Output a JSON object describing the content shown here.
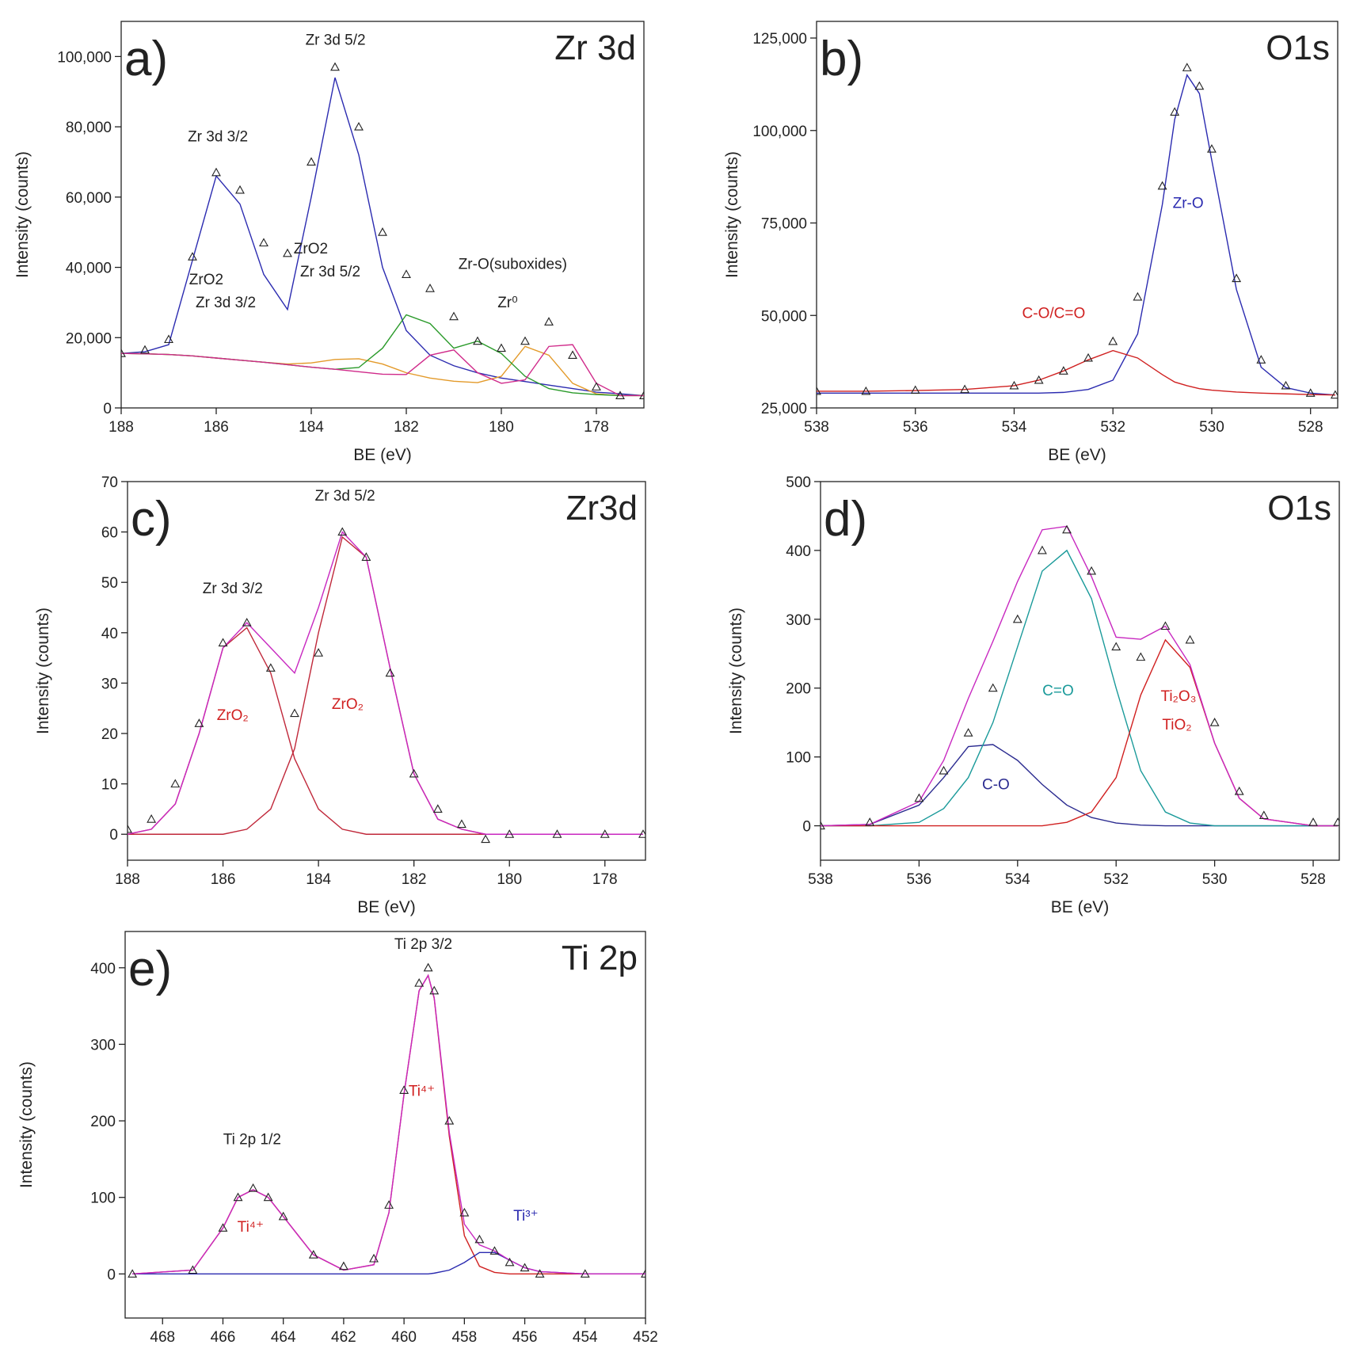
{
  "chart_data": [
    {
      "type": "line",
      "label": "a)",
      "title": "Zr 3d",
      "xlabel": "BE (eV)",
      "ylabel": "Intensity (counts)",
      "x": [
        188,
        187.5,
        187,
        186.5,
        186,
        185.5,
        185,
        184.5,
        184,
        183.5,
        183,
        182.5,
        182,
        181.5,
        181,
        180.5,
        180,
        179.5,
        179,
        178.5,
        178,
        177.5,
        177
      ],
      "xlim": [
        188,
        177
      ],
      "xticks": [
        188,
        186,
        184,
        182,
        180,
        178
      ],
      "ylim": [
        0,
        110000
      ],
      "yticks": [
        0,
        {
          "value": 20000,
          "label": "20,000"
        },
        {
          "value": 40000,
          "label": "40,000"
        },
        {
          "value": 60000,
          "label": "60,000"
        },
        {
          "value": 80000,
          "label": "80,000"
        },
        {
          "value": 100000,
          "label": "100,000"
        }
      ],
      "series": [
        {
          "color": "#2b2bb0",
          "values": [
            15500,
            16000,
            18000,
            42000,
            66000,
            58000,
            38000,
            28000,
            60000,
            94000,
            72000,
            40000,
            22000,
            15000,
            12000,
            10000,
            8500,
            7500,
            6500,
            5500,
            4500,
            4000,
            3500
          ]
        },
        {
          "color": "#e39a2a",
          "values": [
            15500,
            15400,
            15200,
            14800,
            14200,
            13600,
            13000,
            12500,
            12800,
            13800,
            14000,
            12500,
            10000,
            8500,
            7600,
            7200,
            9000,
            17500,
            15000,
            7000,
            4000,
            3500,
            3500
          ]
        },
        {
          "color": "#2a9a2a",
          "values": [
            15500,
            15400,
            15200,
            14800,
            14200,
            13600,
            13000,
            12300,
            11600,
            11000,
            11500,
            17000,
            26500,
            24000,
            17000,
            19000,
            15500,
            9000,
            5500,
            4300,
            3800,
            3500,
            3500
          ]
        },
        {
          "color": "#d02a8a",
          "values": [
            15500,
            15400,
            15200,
            14800,
            14200,
            13600,
            13000,
            12300,
            11600,
            11000,
            10300,
            9600,
            9500,
            15000,
            16500,
            10000,
            7000,
            8000,
            17500,
            18000,
            7000,
            3500,
            3500
          ]
        },
        {
          "color": "#222222",
          "marker": "triangle",
          "values": [
            15500,
            16500,
            19500,
            43000,
            67000,
            62000,
            47000,
            44000,
            70000,
            97000,
            80000,
            50000,
            38000,
            34000,
            26000,
            19000,
            17000,
            19000,
            24500,
            15000,
            6000,
            3500,
            3500
          ]
        }
      ],
      "annotations": [
        {
          "text": "Zr 3d 5/2",
          "color": "#222222"
        },
        {
          "text": "Zr 3d 3/2",
          "color": "#222222"
        },
        {
          "text": "ZrO2",
          "color": "#222222"
        },
        {
          "text": "Zr 3d 3/2",
          "color": "#222222"
        },
        {
          "text": "ZrO2",
          "color": "#222222"
        },
        {
          "text": "Zr 3d 5/2",
          "color": "#222222"
        },
        {
          "text": "Zr-O(suboxides)",
          "color": "#222222"
        },
        {
          "text": "Zr⁰",
          "color": "#222222"
        }
      ]
    },
    {
      "type": "line",
      "label": "b)",
      "title": "O1s",
      "xlabel": "BE (eV)",
      "ylabel": "Intensity (counts)",
      "x": [
        538,
        537,
        536,
        535,
        534,
        533.5,
        533,
        532.5,
        532,
        531.5,
        531,
        530.75,
        530.5,
        530.25,
        530,
        529.5,
        529,
        528.5,
        528,
        527.5
      ],
      "xlim": [
        538,
        527.45
      ],
      "xticks": [
        538,
        536,
        534,
        532,
        530,
        528
      ],
      "ylim": [
        25000,
        129500
      ],
      "yticks": [
        {
          "value": 25000,
          "label": "25,000"
        },
        {
          "value": 50000,
          "label": "50,000"
        },
        {
          "value": 75000,
          "label": "75,000"
        },
        {
          "value": 100000,
          "label": "100,000"
        },
        {
          "value": 125000,
          "label": "125,000"
        }
      ],
      "series": [
        {
          "color": "#2b2bb0",
          "values": [
            29000,
            29000,
            29000,
            29000,
            29000,
            29000,
            29200,
            30000,
            32500,
            45000,
            80000,
            103000,
            115000,
            110000,
            92000,
            57000,
            36000,
            30500,
            29000,
            28500
          ]
        },
        {
          "color": "#d02020",
          "values": [
            29500,
            29500,
            29700,
            30000,
            31000,
            32500,
            35000,
            38000,
            40500,
            38500,
            34000,
            32000,
            31000,
            30200,
            29800,
            29300,
            29000,
            28800,
            28600,
            28500
          ]
        },
        {
          "color": "#222222",
          "marker": "triangle",
          "values": [
            29500,
            29500,
            29800,
            30000,
            31000,
            32500,
            35000,
            38500,
            43000,
            55000,
            85000,
            105000,
            117000,
            112000,
            95000,
            60000,
            38000,
            31000,
            29000,
            28500
          ]
        }
      ],
      "annotations": [
        {
          "text": "Zr-O",
          "color": "#2b2bb0"
        },
        {
          "text": "C-O/C=O",
          "color": "#d02020"
        }
      ]
    },
    {
      "type": "line",
      "label": "c)",
      "title": "Zr3d",
      "xlabel": "BE (eV)",
      "ylabel": "Intensity (counts)",
      "x": [
        188,
        187.5,
        187,
        186.5,
        186,
        185.5,
        185,
        184.5,
        184,
        183.5,
        183,
        182.5,
        182,
        181.5,
        181,
        180.5,
        180,
        179,
        178,
        177.2
      ],
      "xlim": [
        188,
        177.15
      ],
      "xticks": [
        188,
        186,
        184,
        182,
        180,
        178
      ],
      "ylim": [
        -5.15,
        70
      ],
      "yticks": [
        0,
        10,
        20,
        30,
        40,
        50,
        60,
        70
      ],
      "series": [
        {
          "color": "#c0283a",
          "values": [
            0,
            1,
            6,
            20,
            37,
            41,
            32,
            15,
            5,
            1,
            0,
            0,
            0,
            0,
            0,
            0,
            0,
            0,
            0,
            0
          ]
        },
        {
          "color": "#c0283a",
          "values": [
            0,
            0,
            0,
            0,
            0,
            1,
            5,
            17,
            40,
            59,
            55,
            33,
            12,
            3,
            1,
            0,
            0,
            0,
            0,
            0
          ]
        },
        {
          "color": "#c828c0",
          "values": [
            0,
            1,
            6,
            20,
            37,
            42,
            37,
            32,
            45,
            60,
            55,
            33,
            12,
            3,
            1,
            0,
            0,
            0,
            0,
            0
          ]
        },
        {
          "color": "#222222",
          "marker": "triangle",
          "values": [
            1,
            3,
            10,
            22,
            38,
            42,
            33,
            24,
            36,
            60,
            55,
            32,
            12,
            5,
            2,
            -1,
            0,
            0,
            0,
            0
          ]
        }
      ],
      "annotations": [
        {
          "text": "Zr 3d 5/2",
          "color": "#222222"
        },
        {
          "text": "Zr 3d 3/2",
          "color": "#222222"
        },
        {
          "text": "ZrO₂",
          "color": "#d02020"
        },
        {
          "text": "ZrO₂",
          "color": "#d02020"
        }
      ]
    },
    {
      "type": "line",
      "label": "d)",
      "title": "O1s",
      "xlabel": "BE (eV)",
      "ylabel": "Intensity (counts)",
      "x": [
        538,
        537,
        536,
        535.5,
        535,
        534.5,
        534,
        533.5,
        533,
        532.5,
        532,
        531.5,
        531,
        530.5,
        530,
        529.5,
        529,
        528,
        527.5
      ],
      "xlim": [
        538,
        527.47
      ],
      "xticks": [
        538,
        536,
        534,
        532,
        530,
        528
      ],
      "ylim": [
        -50,
        500
      ],
      "yticks": [
        0,
        100,
        200,
        300,
        400,
        500
      ],
      "series": [
        {
          "color": "#2b2b90",
          "values": [
            0,
            2,
            30,
            70,
            115,
            118,
            95,
            60,
            30,
            12,
            4,
            1,
            0,
            0,
            0,
            0,
            0,
            0,
            0
          ]
        },
        {
          "color": "#1a9a9a",
          "values": [
            0,
            0,
            5,
            25,
            70,
            150,
            260,
            370,
            400,
            330,
            200,
            80,
            20,
            4,
            0,
            0,
            0,
            0,
            0
          ]
        },
        {
          "color": "#d02020",
          "values": [
            0,
            0,
            0,
            0,
            0,
            0,
            0,
            0,
            5,
            20,
            70,
            190,
            270,
            230,
            120,
            40,
            10,
            0,
            0
          ]
        },
        {
          "color": "#c828c0",
          "values": [
            0,
            2,
            35,
            95,
            185,
            268,
            355,
            430,
            435,
            362,
            274,
            271,
            290,
            234,
            120,
            40,
            10,
            0,
            0
          ]
        },
        {
          "color": "#222222",
          "marker": "triangle",
          "values": [
            0,
            5,
            40,
            80,
            135,
            200,
            300,
            400,
            430,
            370,
            260,
            245,
            290,
            270,
            150,
            50,
            15,
            5,
            5
          ]
        }
      ],
      "annotations": [
        {
          "text": "C=O",
          "color": "#1a9a9a"
        },
        {
          "text": "C-O",
          "color": "#2b2b90"
        },
        {
          "text": "Ti₂O₃",
          "color": "#d02020"
        },
        {
          "text": "TiO₂",
          "color": "#d02020"
        }
      ]
    },
    {
      "type": "line",
      "label": "e)",
      "title": "Ti 2p",
      "ylabel": "Intensity (counts)",
      "x": [
        469,
        467,
        466,
        465.5,
        465,
        464.5,
        464,
        463,
        462,
        461,
        460.5,
        460,
        459.5,
        459.2,
        459,
        458.5,
        458,
        457.5,
        457,
        456.5,
        456,
        455.5,
        454,
        452
      ],
      "xlim": [
        469.24,
        452
      ],
      "xticks": [
        468,
        466,
        464,
        462,
        460,
        458,
        456,
        454,
        452
      ],
      "ylim": [
        -57.6,
        447.4
      ],
      "yticks": [
        0,
        100,
        200,
        300,
        400
      ],
      "series": [
        {
          "color": "#d02020",
          "values": [
            0,
            5,
            60,
            100,
            110,
            100,
            75,
            25,
            5,
            12,
            80,
            235,
            370,
            390,
            360,
            180,
            50,
            10,
            2,
            0,
            0,
            0,
            0,
            0
          ]
        },
        {
          "color": "#2b2bb0",
          "values": [
            0,
            0,
            0,
            0,
            0,
            0,
            0,
            0,
            0,
            0,
            0,
            0,
            0,
            0,
            1,
            5,
            15,
            28,
            28,
            18,
            8,
            3,
            0,
            0
          ]
        },
        {
          "color": "#c828c0",
          "values": [
            0,
            5,
            60,
            100,
            110,
            100,
            75,
            25,
            5,
            12,
            80,
            235,
            370,
            390,
            361,
            185,
            65,
            38,
            30,
            18,
            8,
            3,
            0,
            0
          ]
        },
        {
          "color": "#222222",
          "marker": "triangle",
          "values": [
            0,
            5,
            60,
            100,
            112,
            100,
            75,
            25,
            10,
            20,
            90,
            240,
            380,
            400,
            370,
            200,
            80,
            45,
            30,
            15,
            8,
            0,
            0,
            0
          ]
        }
      ],
      "annotations": [
        {
          "text": "Ti 2p 3/2",
          "color": "#222222"
        },
        {
          "text": "Ti 2p 1/2",
          "color": "#222222"
        },
        {
          "text": "Ti⁴⁺",
          "color": "#d02020"
        },
        {
          "text": "Ti⁴⁺",
          "color": "#d02020"
        },
        {
          "text": "Ti³⁺",
          "color": "#2b2bb0"
        }
      ]
    }
  ]
}
